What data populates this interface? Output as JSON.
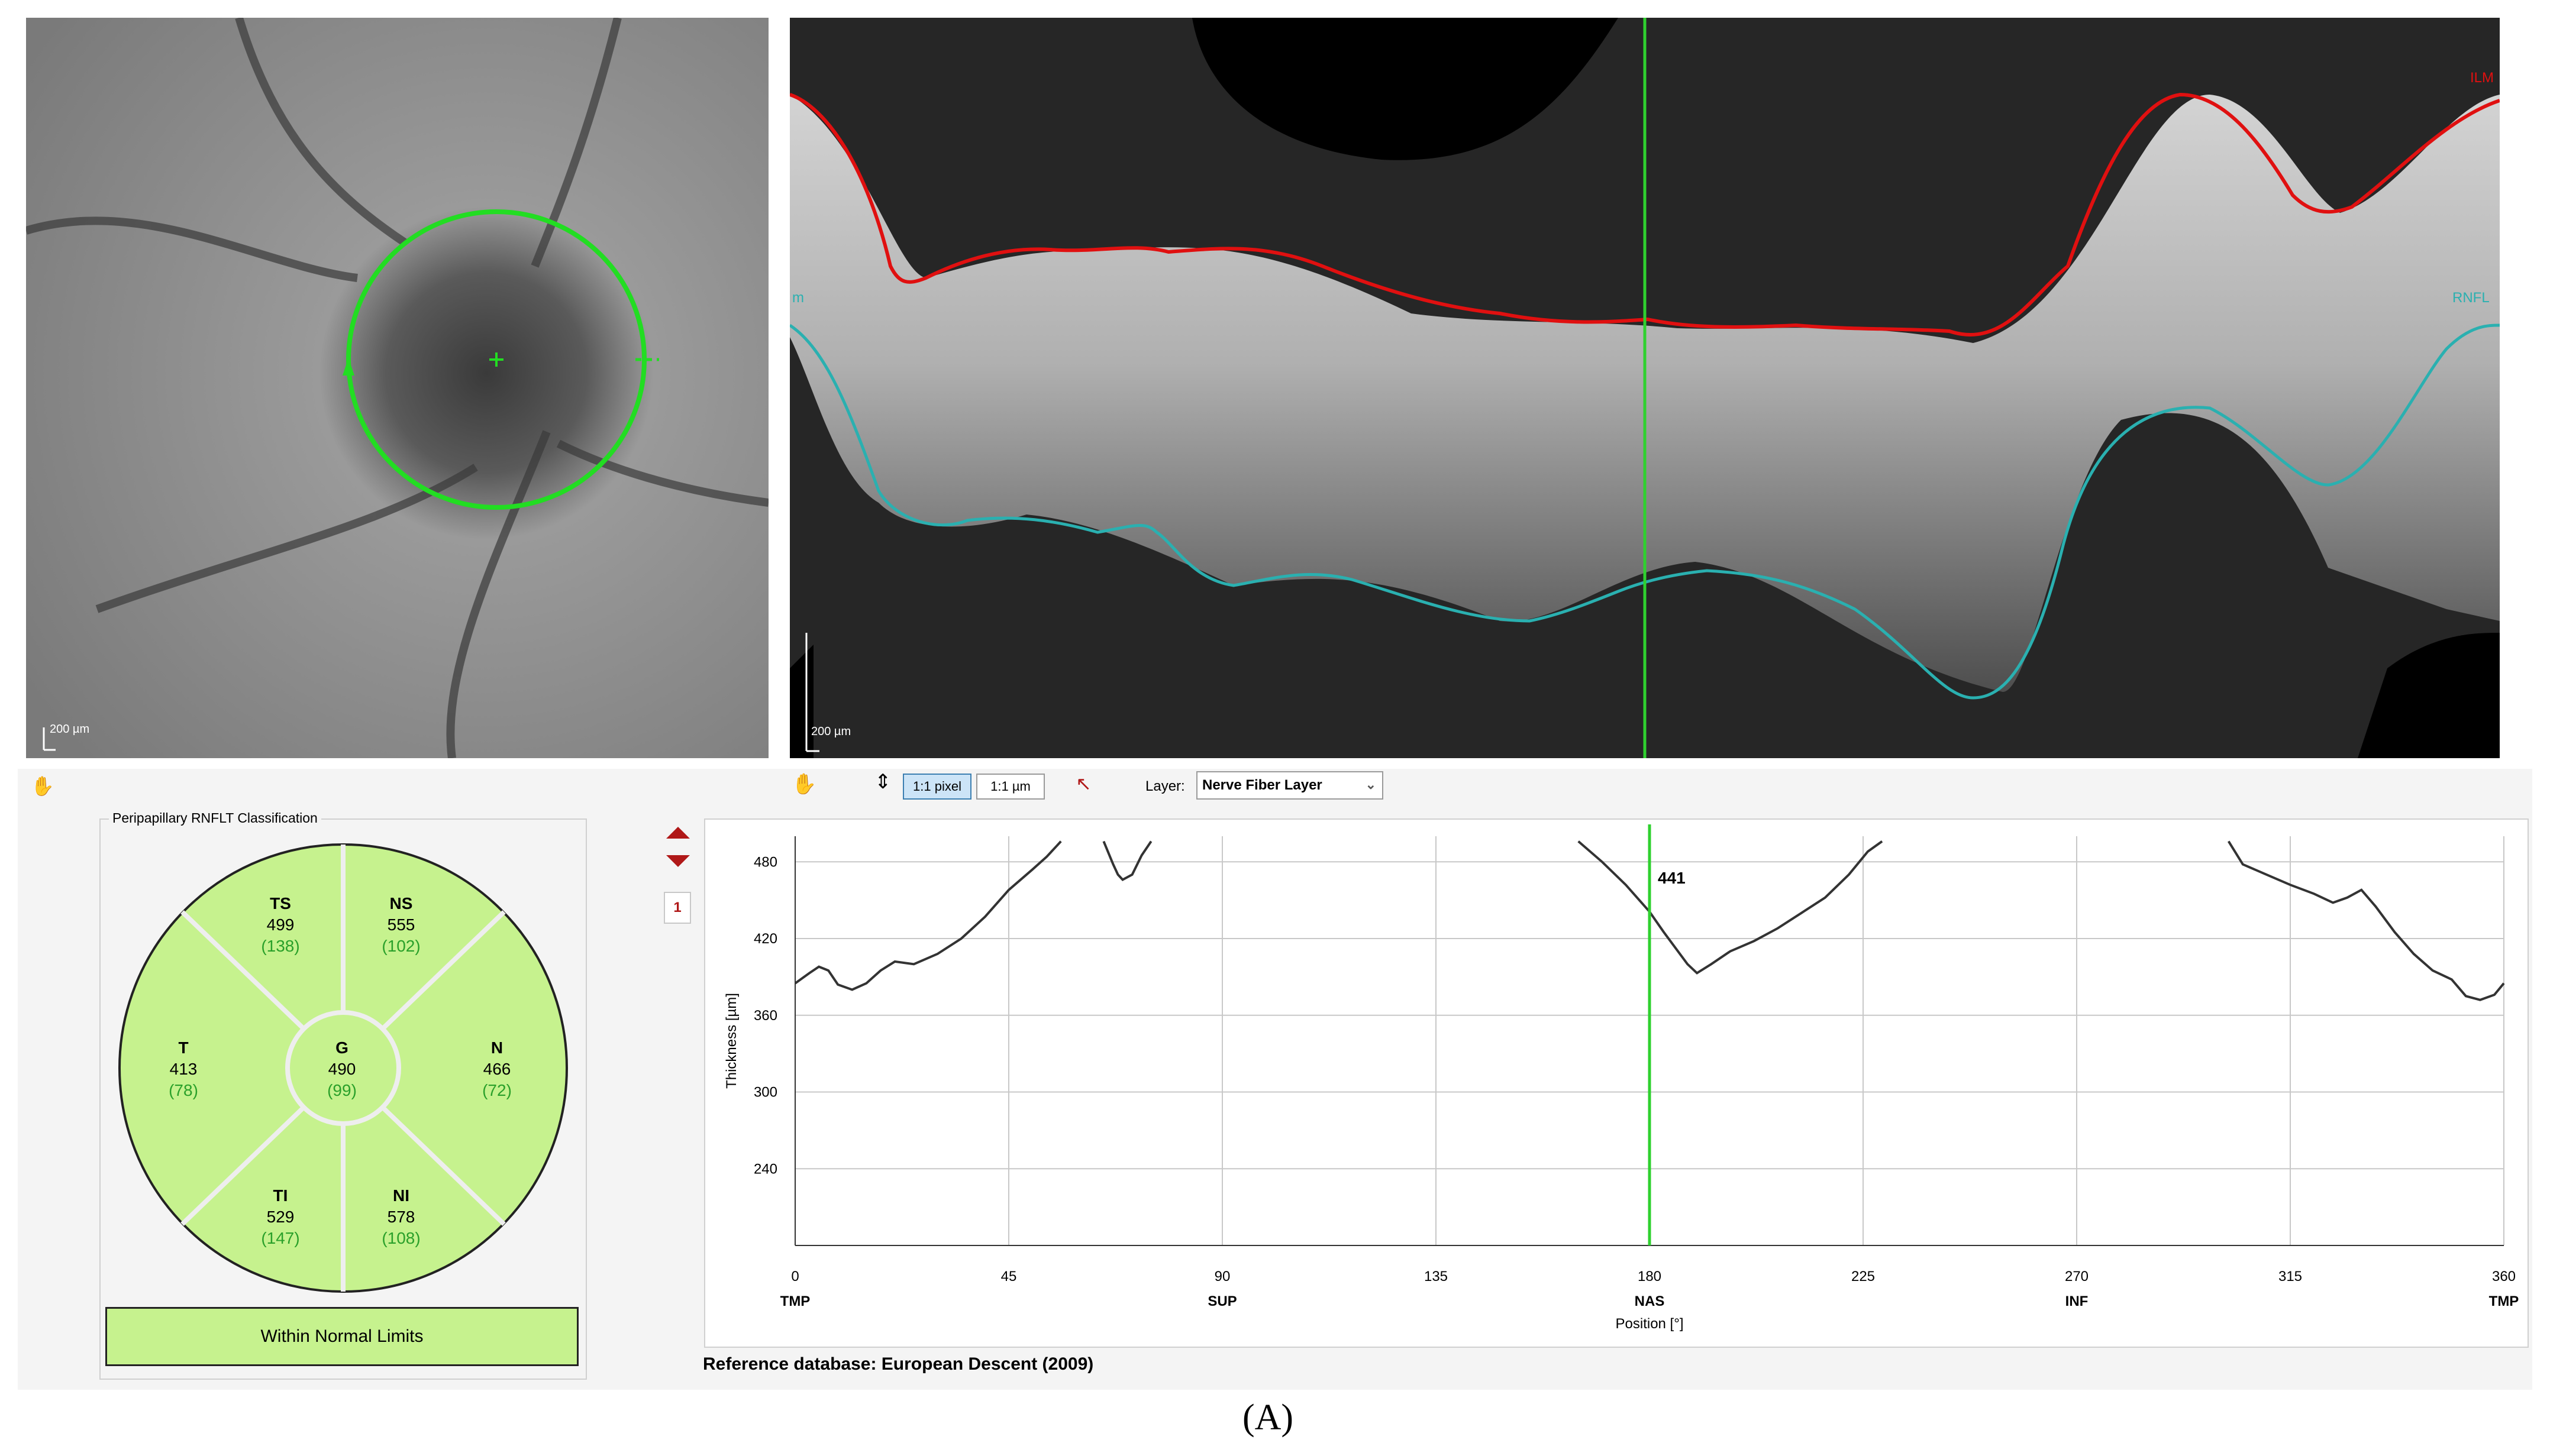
{
  "fundus": {
    "scale_label": "200 µm"
  },
  "bscan": {
    "scale_label": "200 µm",
    "ilm_label": "ILM",
    "rnfl_label": "RNFL",
    "left_label": "m"
  },
  "toolbar": {
    "pixel_button": "1:1 pixel",
    "um_button": "1:1 µm",
    "layer_label": "Layer:",
    "layer_value": "Nerve Fiber Layer"
  },
  "classification": {
    "title": "Peripapillary RNFLT Classification",
    "sectors": {
      "TS": {
        "name": "TS",
        "value": "499",
        "ref": "(138)"
      },
      "NS": {
        "name": "NS",
        "value": "555",
        "ref": "(102)"
      },
      "T": {
        "name": "T",
        "value": "413",
        "ref": "(78)"
      },
      "G": {
        "name": "G",
        "value": "490",
        "ref": "(99)"
      },
      "N": {
        "name": "N",
        "value": "466",
        "ref": "(72)"
      },
      "TI": {
        "name": "TI",
        "value": "529",
        "ref": "(147)"
      },
      "NI": {
        "name": "NI",
        "value": "578",
        "ref": "(108)"
      }
    },
    "result": "Within Normal Limits"
  },
  "page_number": "1",
  "reference_db": "Reference database: European Descent (2009)",
  "caption": "(A)",
  "colors": {
    "ilm": "#e01010",
    "rnfl": "#2ab0b0",
    "cursor": "#2fd12f",
    "sector_fill": "#c6f28e"
  },
  "chart_data": {
    "type": "line",
    "xlabel": "Position [°]",
    "ylabel": "Thickness [µm]",
    "xlim": [
      0,
      360
    ],
    "ylim": [
      180,
      500
    ],
    "x_ticks": [
      0,
      45,
      90,
      135,
      180,
      225,
      270,
      315,
      360
    ],
    "x_tick_labels": [
      "0",
      "45",
      "90",
      "135",
      "180",
      "225",
      "270",
      "315",
      "360"
    ],
    "x_region_labels": [
      {
        "x": 0,
        "label": "TMP"
      },
      {
        "x": 90,
        "label": "SUP"
      },
      {
        "x": 180,
        "label": "NAS"
      },
      {
        "x": 270,
        "label": "INF"
      },
      {
        "x": 360,
        "label": "TMP"
      }
    ],
    "y_ticks": [
      240,
      300,
      360,
      420,
      480
    ],
    "cursor": {
      "x": 180,
      "label": "441"
    },
    "series": [
      {
        "segments": [
          [
            [
              0,
              385
            ],
            [
              3,
              393
            ],
            [
              5,
              398
            ],
            [
              7,
              395
            ],
            [
              9,
              384
            ],
            [
              12,
              380
            ],
            [
              15,
              385
            ],
            [
              18,
              395
            ],
            [
              21,
              402
            ],
            [
              25,
              400
            ],
            [
              30,
              408
            ],
            [
              35,
              420
            ],
            [
              40,
              437
            ],
            [
              45,
              458
            ],
            [
              50,
              474
            ],
            [
              53,
              484
            ],
            [
              55,
              492
            ],
            [
              56,
              496
            ]
          ],
          [
            [
              65,
              496
            ],
            [
              67,
              478
            ],
            [
              68,
              470
            ],
            [
              69,
              466
            ],
            [
              71,
              470
            ],
            [
              73,
              485
            ],
            [
              75,
              496
            ]
          ],
          [
            [
              165,
              496
            ],
            [
              170,
              480
            ],
            [
              175,
              462
            ],
            [
              180,
              441
            ],
            [
              183,
              425
            ],
            [
              185,
              415
            ],
            [
              188,
              400
            ],
            [
              190,
              393
            ],
            [
              193,
              400
            ],
            [
              197,
              410
            ],
            [
              202,
              418
            ],
            [
              207,
              428
            ],
            [
              212,
              440
            ],
            [
              217,
              452
            ],
            [
              222,
              470
            ],
            [
              226,
              488
            ],
            [
              229,
              496
            ]
          ],
          [
            [
              302,
              496
            ],
            [
              305,
              478
            ],
            [
              310,
              470
            ],
            [
              315,
              462
            ],
            [
              320,
              455
            ],
            [
              324,
              448
            ],
            [
              327,
              452
            ],
            [
              330,
              458
            ],
            [
              333,
              445
            ],
            [
              337,
              425
            ],
            [
              341,
              408
            ],
            [
              345,
              395
            ],
            [
              349,
              388
            ],
            [
              352,
              375
            ],
            [
              355,
              372
            ],
            [
              358,
              376
            ],
            [
              360,
              385
            ]
          ]
        ]
      }
    ]
  }
}
